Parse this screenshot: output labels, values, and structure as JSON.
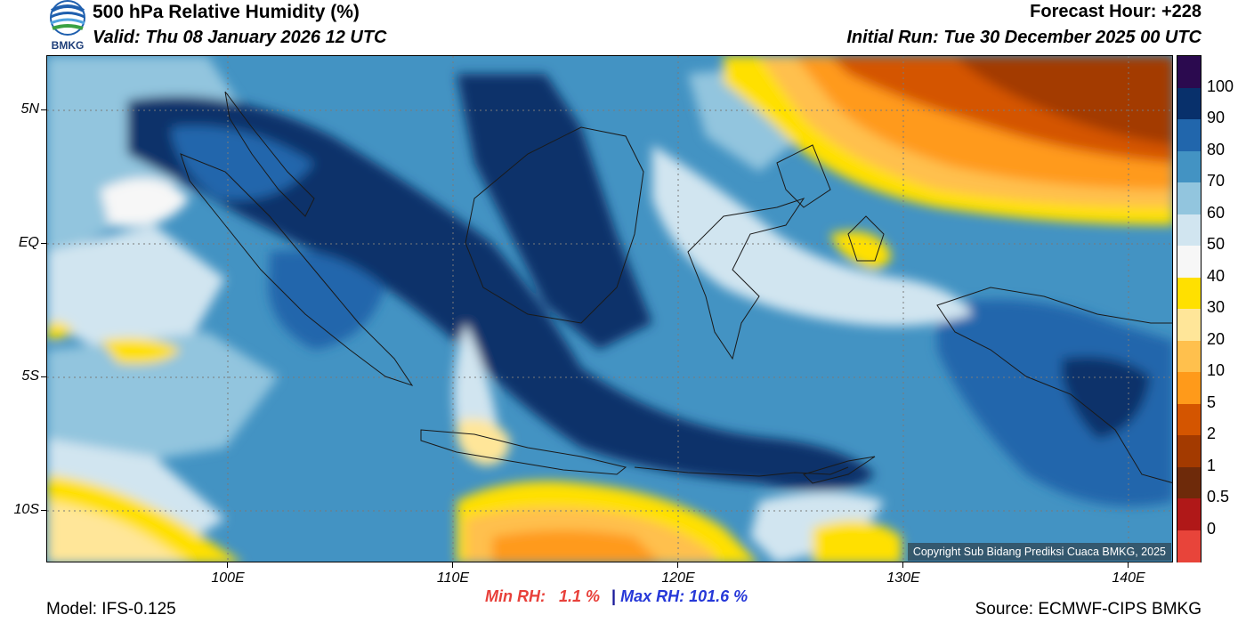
{
  "header": {
    "logo_text": "BMKG",
    "title": "500 hPa Relative Humidity (%)",
    "valid": "Valid: Thu 08 January 2026 12 UTC",
    "forecast_hour": "Forecast Hour: +228",
    "initial_run": "Initial Run: Tue 30 December 2025 00 UTC"
  },
  "map": {
    "lat_labels": [
      "5N",
      "EQ",
      "5S",
      "10S"
    ],
    "lon_labels": [
      "100E",
      "110E",
      "120E",
      "130E",
      "140E"
    ],
    "copyright": "Copyright Sub Bidang Prediksi Cuaca BMKG, 2025"
  },
  "colorbar": {
    "labels": [
      "100",
      "90",
      "80",
      "70",
      "60",
      "50",
      "40",
      "30",
      "20",
      "10",
      "5",
      "2",
      "1",
      "0.5",
      "0"
    ],
    "colors": [
      "#2b0a4f",
      "#08306b",
      "#2166ac",
      "#4393c3",
      "#92c5de",
      "#d1e5f0",
      "#f7f7f7",
      "#ffe000",
      "#ffe699",
      "#ffc04d",
      "#ff9a1a",
      "#d45500",
      "#a33a00",
      "#6e2a0a",
      "#b01818",
      "#e8443a"
    ]
  },
  "stats": {
    "min_label": "Min RH:",
    "min_value": "1.1 %",
    "separator": "|",
    "max_label": "Max RH:",
    "max_value": "101.6 %"
  },
  "footer": {
    "model": "Model: IFS-0.125",
    "source": "Source: ECMWF-CIPS BMKG"
  }
}
